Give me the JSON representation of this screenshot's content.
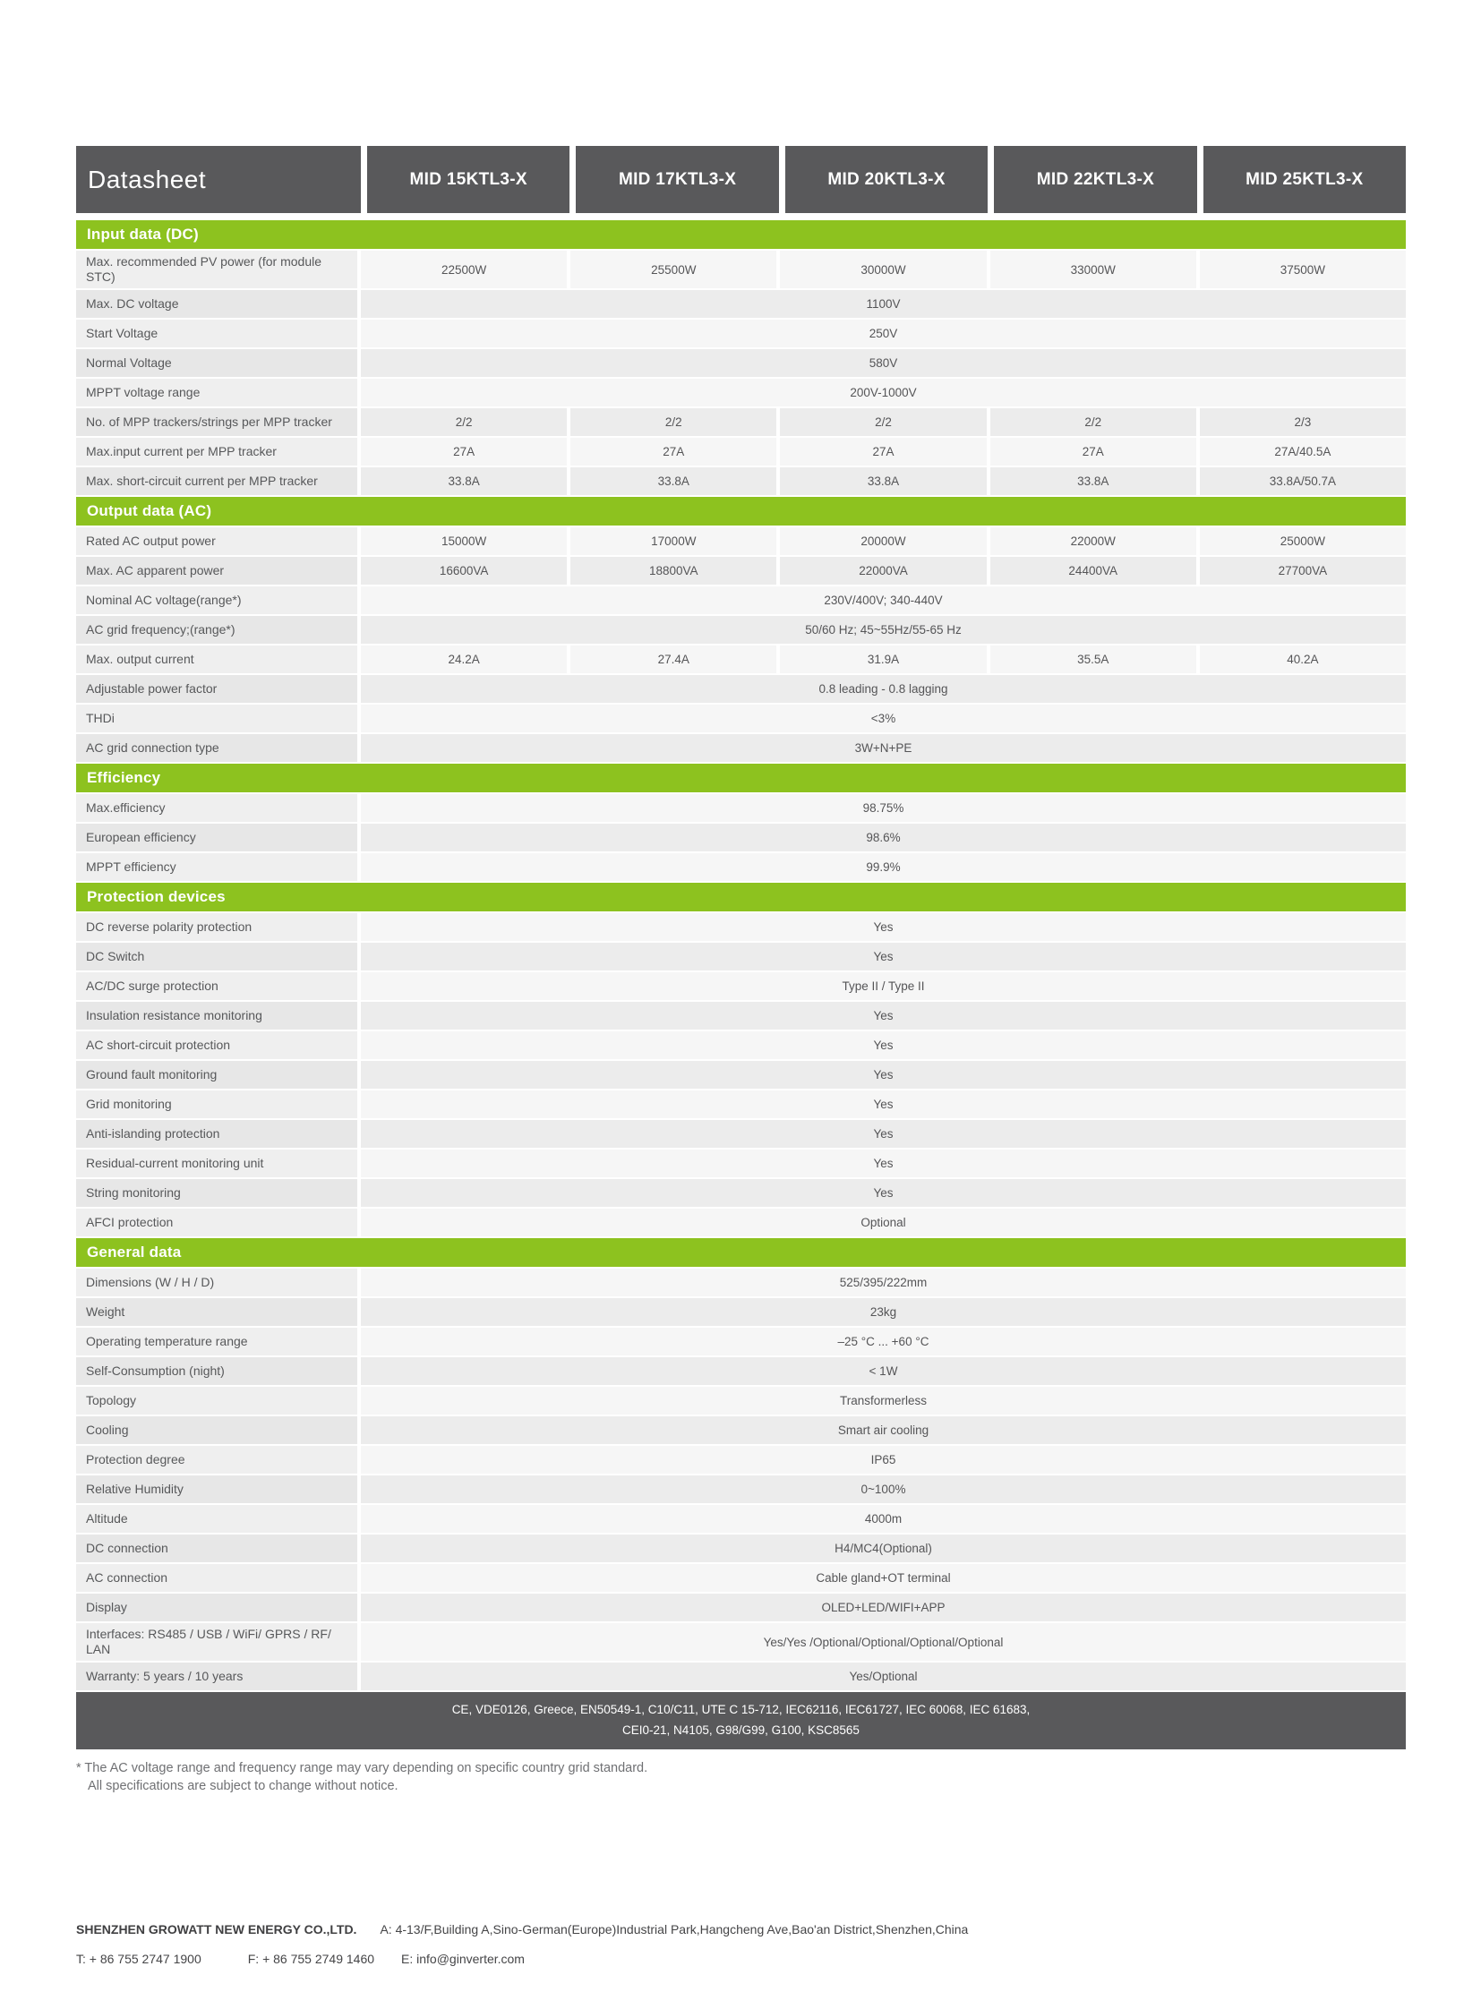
{
  "colors": {
    "accent_green": "#8dc21f",
    "header_gray": "#59595b"
  },
  "header": {
    "title": "Datasheet",
    "models": [
      "MID 15KTL3-X",
      "MID 17KTL3-X",
      "MID 20KTL3-X",
      "MID 22KTL3-X",
      "MID 25KTL3-X"
    ]
  },
  "sections": [
    {
      "title": "Input data (DC)",
      "rows": [
        {
          "label": "Max. recommended PV power (for module STC)",
          "values": [
            "22500W",
            "25500W",
            "30000W",
            "33000W",
            "37500W"
          ]
        },
        {
          "label": "Max. DC voltage",
          "span": "1100V"
        },
        {
          "label": "Start Voltage",
          "span": "250V"
        },
        {
          "label": "Normal Voltage",
          "span": "580V"
        },
        {
          "label": "MPPT voltage range",
          "span": "200V-1000V"
        },
        {
          "label": "No. of MPP trackers/strings per MPP tracker",
          "values": [
            "2/2",
            "2/2",
            "2/2",
            "2/2",
            "2/3"
          ]
        },
        {
          "label": "Max.input current per MPP tracker",
          "values": [
            "27A",
            "27A",
            "27A",
            "27A",
            "27A/40.5A"
          ]
        },
        {
          "label": "Max. short-circuit current per MPP tracker",
          "values": [
            "33.8A",
            "33.8A",
            "33.8A",
            "33.8A",
            "33.8A/50.7A"
          ]
        }
      ]
    },
    {
      "title": "Output data (AC)",
      "rows": [
        {
          "label": "Rated AC output power",
          "values": [
            "15000W",
            "17000W",
            "20000W",
            "22000W",
            "25000W"
          ]
        },
        {
          "label": "Max. AC apparent power",
          "values": [
            "16600VA",
            "18800VA",
            "22000VA",
            "24400VA",
            "27700VA"
          ]
        },
        {
          "label": "Nominal AC voltage(range*)",
          "span": "230V/400V; 340-440V"
        },
        {
          "label": "AC grid frequency;(range*)",
          "span": "50/60 Hz; 45~55Hz/55-65 Hz"
        },
        {
          "label": "Max. output current",
          "values": [
            "24.2A",
            "27.4A",
            "31.9A",
            "35.5A",
            "40.2A"
          ]
        },
        {
          "label": "Adjustable power factor",
          "span": "0.8 leading - 0.8 lagging"
        },
        {
          "label": "THDi",
          "span": "<3%"
        },
        {
          "label": "AC grid connection type",
          "span": "3W+N+PE"
        }
      ]
    },
    {
      "title": "Efficiency",
      "rows": [
        {
          "label": "Max.efficiency",
          "span": "98.75%"
        },
        {
          "label": "European efficiency",
          "span": "98.6%"
        },
        {
          "label": "MPPT efficiency",
          "span": "99.9%"
        }
      ]
    },
    {
      "title": "Protection devices",
      "rows": [
        {
          "label": "DC reverse polarity protection",
          "span": "Yes"
        },
        {
          "label": "DC Switch",
          "span": "Yes"
        },
        {
          "label": "AC/DC surge protection",
          "span": "Type II / Type II"
        },
        {
          "label": "Insulation resistance monitoring",
          "span": "Yes"
        },
        {
          "label": "AC short-circuit protection",
          "span": "Yes"
        },
        {
          "label": "Ground fault monitoring",
          "span": "Yes"
        },
        {
          "label": "Grid monitoring",
          "span": "Yes"
        },
        {
          "label": "Anti-islanding protection",
          "span": "Yes"
        },
        {
          "label": "Residual-current monitoring unit",
          "span": "Yes"
        },
        {
          "label": "String monitoring",
          "span": "Yes"
        },
        {
          "label": "AFCI protection",
          "span": "Optional"
        }
      ]
    },
    {
      "title": "General data",
      "rows": [
        {
          "label": "Dimensions (W / H / D)",
          "span": "525/395/222mm"
        },
        {
          "label": "Weight",
          "span": "23kg"
        },
        {
          "label": "Operating temperature range",
          "span": "–25 °C ... +60 °C"
        },
        {
          "label": "Self-Consumption (night)",
          "span": "< 1W"
        },
        {
          "label": "Topology",
          "span": "Transformerless"
        },
        {
          "label": "Cooling",
          "span": "Smart air cooling"
        },
        {
          "label": "Protection degree",
          "span": "IP65"
        },
        {
          "label": "Relative Humidity",
          "span": "0~100%"
        },
        {
          "label": "Altitude",
          "span": "4000m"
        },
        {
          "label": "DC connection",
          "span": "H4/MC4(Optional)"
        },
        {
          "label": "AC connection",
          "span": "Cable gland+OT terminal"
        },
        {
          "label": "Display",
          "span": "OLED+LED/WIFI+APP"
        },
        {
          "label": "Interfaces: RS485 / USB / WiFi/ GPRS / RF/ LAN",
          "span": "Yes/Yes /Optional/Optional/Optional/Optional"
        },
        {
          "label": "Warranty: 5 years / 10 years",
          "span": "Yes/Optional"
        }
      ]
    }
  ],
  "certifications": {
    "line1": "CE, VDE0126, Greece, EN50549-1, C10/C11, UTE C 15-712, IEC62116, IEC61727, IEC 60068, IEC 61683,",
    "line2": "CEI0-21, N4105, G98/G99, G100, KSC8565"
  },
  "footnote": {
    "line1": "* The AC voltage range and frequency range may vary depending on specific country grid standard.",
    "line2": "All specifications are subject to change without notice."
  },
  "footer": {
    "company": "SHENZHEN GROWATT NEW ENERGY CO.,LTD.",
    "address": "A: 4-13/F,Building A,Sino-German(Europe)Industrial Park,Hangcheng Ave,Bao'an District,Shenzhen,China",
    "tel": "T: + 86 755 2747 1900",
    "fax": "F: + 86 755 2749 1460",
    "email": "E:  info@ginverter.com"
  }
}
